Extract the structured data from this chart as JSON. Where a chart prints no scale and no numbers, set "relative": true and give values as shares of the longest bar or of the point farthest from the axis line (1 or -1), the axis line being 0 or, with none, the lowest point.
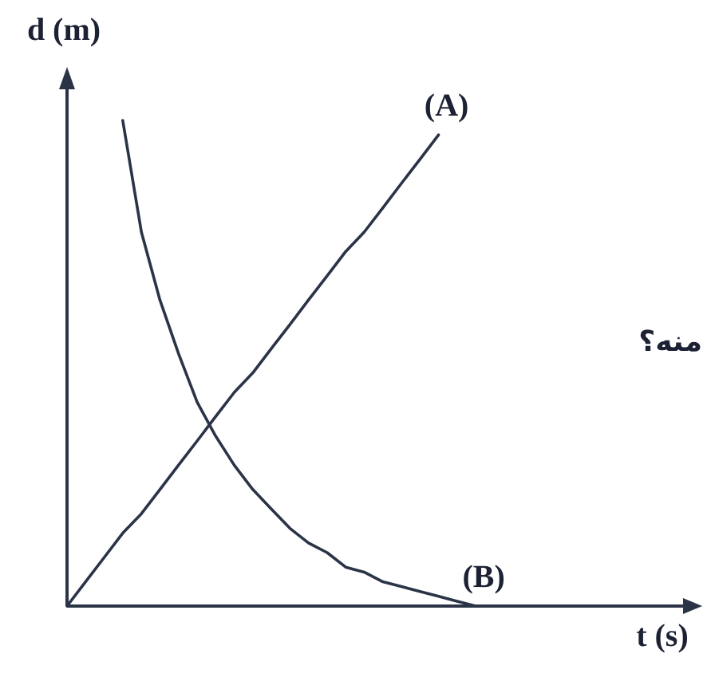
{
  "chart_data": {
    "type": "line",
    "relative": true,
    "xlabel": "t (s)",
    "ylabel": "d (m)",
    "categories": [
      null,
      null,
      null,
      null,
      null,
      null,
      null,
      null,
      null,
      null,
      null,
      null,
      null,
      null,
      null,
      null,
      null,
      null,
      null,
      null,
      null,
      null,
      null
    ],
    "series": [
      {
        "name": "(A)",
        "color": "#2b3447",
        "values": [
          0,
          0.05,
          0.1,
          0.15,
          0.19,
          0.24,
          0.29,
          0.34,
          0.39,
          0.44,
          0.48,
          0.53,
          0.58,
          0.63,
          0.68,
          0.73,
          0.77,
          0.82,
          0.87,
          0.92,
          0.97,
          null,
          null
        ]
      },
      {
        "name": "(B)",
        "color": "#2b3447",
        "values": [
          null,
          null,
          null,
          1,
          0.77,
          0.63,
          0.52,
          0.42,
          0.35,
          0.29,
          0.24,
          0.2,
          0.16,
          0.13,
          0.11,
          0.08,
          0.07,
          0.05,
          0.04,
          0.03,
          0.02,
          0.01,
          0
        ]
      }
    ],
    "annotations": [
      "منه؟"
    ],
    "marker": "none",
    "line_style": "solid"
  }
}
